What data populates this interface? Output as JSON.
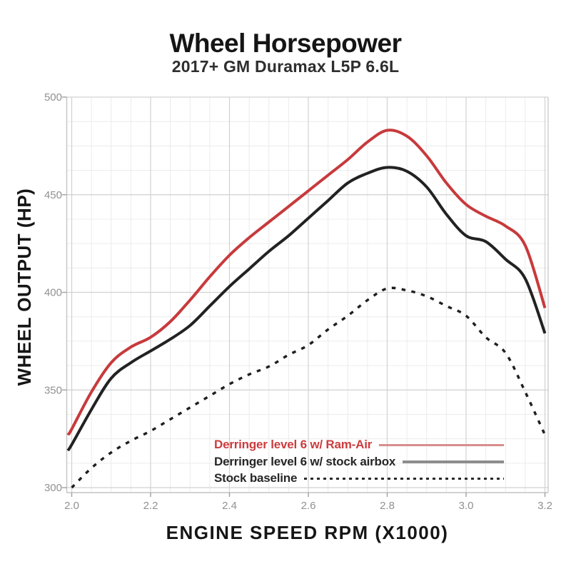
{
  "page": {
    "background": "#ffffff"
  },
  "chart": {
    "title": "Wheel Horsepower",
    "subtitle": "2017+ GM Duramax L5P 6.6L",
    "x_axis": {
      "title": "ENGINE SPEED RPM (X1000)",
      "ticks": [
        "2.0",
        "2.2",
        "2.4",
        "2.6",
        "2.8",
        "3.0",
        "3.2"
      ]
    },
    "y_axis": {
      "title": "WHEEL OUTPUT (HP)",
      "ticks": [
        "300",
        "350",
        "400",
        "450",
        "500"
      ]
    },
    "legend": [
      {
        "label": "Derringer level 6 w/ Ram-Air",
        "sample_style": "solid",
        "sample_color": "#d98d8d"
      },
      {
        "label": "Derringer level 6 w/ stock airbox",
        "sample_style": "solid",
        "sample_color": "#8d8d8d"
      },
      {
        "label": "Stock baseline",
        "sample_style": "dotted",
        "sample_color": "#2a2a2a"
      }
    ],
    "colors": {
      "ram_air_curve": "#c73a3c",
      "stock_airbox_curve": "#222222",
      "stock_baseline_curve": "#1f1f1f",
      "major_grid": "#d2d2d2",
      "minor_grid": "#ececec",
      "axis_line": "#c4c4c4",
      "tick_label": "#919191"
    }
  },
  "chart_data": {
    "type": "line",
    "title": "Wheel Horsepower",
    "subtitle": "2017+ GM Duramax L5P 6.6L",
    "xlabel": "ENGINE SPEED RPM (X1000)",
    "ylabel": "WHEEL OUTPUT (HP)",
    "xlim": [
      2.0,
      3.2
    ],
    "ylim": [
      300,
      500
    ],
    "x_major_step": 0.2,
    "x_minor_step": 0.05,
    "y_major_step": 50,
    "y_minor_step": 12.5,
    "grid": true,
    "legend_position": "lower right",
    "x": [
      1.99,
      2.0,
      2.05,
      2.1,
      2.15,
      2.2,
      2.25,
      2.3,
      2.35,
      2.4,
      2.45,
      2.5,
      2.55,
      2.6,
      2.65,
      2.7,
      2.75,
      2.8,
      2.85,
      2.9,
      2.95,
      3.0,
      3.05,
      3.1,
      3.15,
      3.2
    ],
    "series": [
      {
        "name": "Derringer level 6 w/ Ram-Air",
        "style": "solid",
        "color": "#c73a3c",
        "width": 4,
        "values": [
          327,
          330,
          349,
          364,
          372,
          377,
          385,
          396,
          408,
          419,
          428,
          436,
          444,
          452,
          460,
          468,
          477,
          483,
          480,
          470,
          456,
          445,
          439,
          434,
          424,
          392
        ]
      },
      {
        "name": "Derringer level 6 w/ stock airbox",
        "style": "solid",
        "color": "#222222",
        "width": 4,
        "values": [
          319,
          322,
          340,
          356,
          364,
          370,
          376,
          383,
          393,
          403,
          412,
          421,
          429,
          438,
          447,
          456,
          461,
          464,
          462,
          454,
          440,
          429,
          426,
          417,
          407,
          379
        ]
      },
      {
        "name": "Stock baseline",
        "style": "dashed",
        "color": "#1f1f1f",
        "width": 3.4,
        "values": [
          null,
          300,
          310,
          318,
          324,
          329,
          335,
          341,
          347,
          353,
          358,
          362,
          368,
          373,
          381,
          388,
          396,
          402,
          401,
          398,
          393,
          388,
          377,
          369,
          349,
          327
        ]
      }
    ]
  }
}
